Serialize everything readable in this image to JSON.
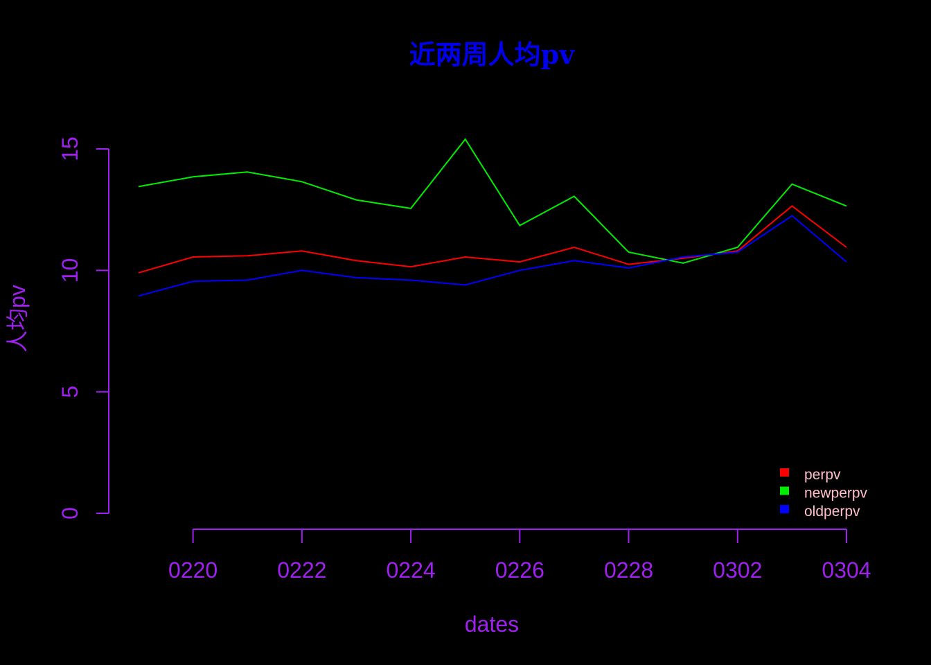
{
  "chart_data": {
    "type": "line",
    "title": "近两周人均pv",
    "xlabel": "dates",
    "ylabel": "人均pv",
    "x": [
      "0219",
      "0220",
      "0221",
      "0222",
      "0223",
      "0224",
      "0225",
      "0226",
      "0227",
      "0228",
      "0301",
      "0302",
      "0303",
      "0304"
    ],
    "x_tick_labels": [
      "0220",
      "0222",
      "0224",
      "0226",
      "0228",
      "0302",
      "0304"
    ],
    "y_ticks": [
      "0",
      "5",
      "10",
      "15"
    ],
    "ylim": [
      0,
      15
    ],
    "series": [
      {
        "name": "perpv",
        "color": "#ff0000",
        "values": [
          9.9,
          10.55,
          10.6,
          10.8,
          10.4,
          10.15,
          10.55,
          10.35,
          10.95,
          10.25,
          10.5,
          10.8,
          12.65,
          10.95
        ]
      },
      {
        "name": "newperpv",
        "color": "#00ee00",
        "values": [
          13.45,
          13.85,
          14.05,
          13.65,
          12.9,
          12.55,
          15.4,
          11.85,
          13.05,
          10.75,
          10.3,
          10.95,
          13.55,
          12.65
        ]
      },
      {
        "name": "oldperpv",
        "color": "#0000ff",
        "values": [
          8.95,
          9.55,
          9.6,
          10.0,
          9.7,
          9.6,
          9.4,
          10.0,
          10.4,
          10.1,
          10.55,
          10.75,
          12.25,
          10.35
        ]
      }
    ],
    "grid": false,
    "legend_position": "bottom-right"
  },
  "colors": {
    "background": "#000000",
    "axis": "#a020f0",
    "title": "#0000ee",
    "legend_text": "#ffc0cb"
  }
}
